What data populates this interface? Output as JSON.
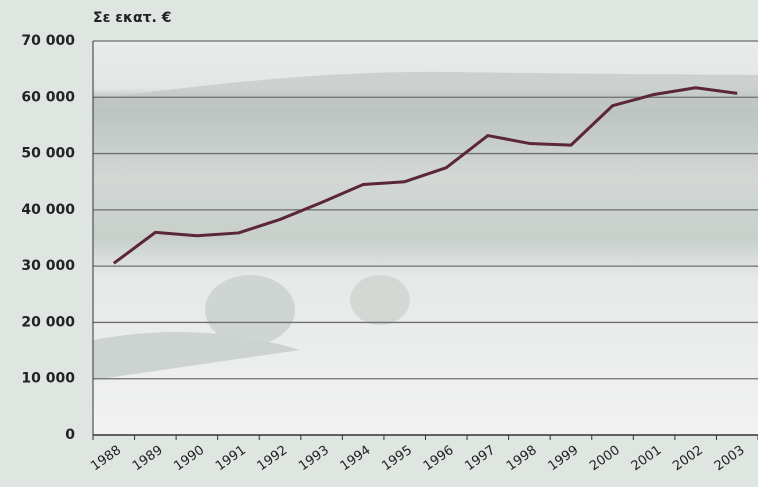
{
  "chart_data": {
    "type": "line",
    "title": "Σε εκατ. €",
    "categories": [
      "1988",
      "1989",
      "1990",
      "1991",
      "1992",
      "1993",
      "1994",
      "1995",
      "1996",
      "1997",
      "1998",
      "1999",
      "2000",
      "2001",
      "2002",
      "2003"
    ],
    "series": [
      {
        "name": "Σε εκατ. €",
        "color": "#5a2638",
        "values": [
          30500,
          36000,
          35400,
          35900,
          38300,
          41300,
          44500,
          45000,
          47500,
          53200,
          51800,
          51500,
          58500,
          60500,
          61700,
          60700
        ]
      }
    ],
    "ylim": [
      0,
      70000
    ],
    "yticks": [
      {
        "value": 0,
        "label": "0"
      },
      {
        "value": 10000,
        "label": "10 000"
      },
      {
        "value": 20000,
        "label": "20 000"
      },
      {
        "value": 30000,
        "label": "30 000"
      },
      {
        "value": 40000,
        "label": "40 000"
      },
      {
        "value": 50000,
        "label": "50 000"
      },
      {
        "value": 60000,
        "label": "60 000"
      },
      {
        "value": 70000,
        "label": "70 000"
      }
    ],
    "grid": true
  }
}
